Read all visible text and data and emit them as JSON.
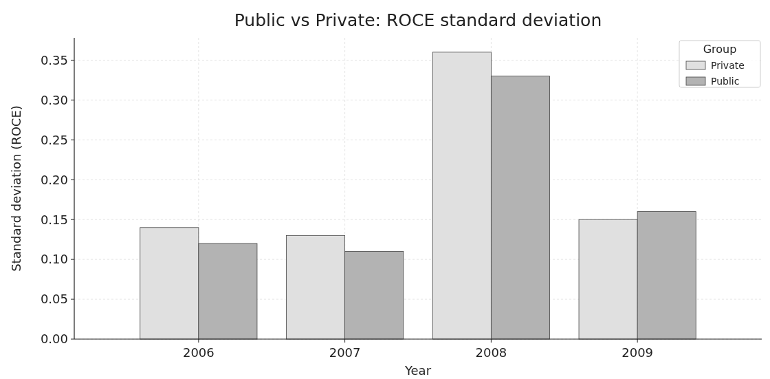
{
  "chart_data": {
    "type": "bar",
    "title": "Public vs Private: ROCE standard deviation",
    "xlabel": "Year",
    "ylabel": "Standard deviation (ROCE)",
    "legend_title": "Group",
    "categories": [
      "2006",
      "2007",
      "2008",
      "2009"
    ],
    "series": [
      {
        "name": "Private",
        "color": "#e0e0e0",
        "values": [
          0.14,
          0.13,
          0.36,
          0.15
        ]
      },
      {
        "name": "Public",
        "color": "#b3b3b3",
        "values": [
          0.12,
          0.11,
          0.33,
          0.16
        ]
      }
    ],
    "ylim": [
      0,
      0.378
    ],
    "yticks": [
      {
        "value": 0,
        "label": "0.00"
      },
      {
        "value": 0.05,
        "label": "0.05"
      },
      {
        "value": 0.1,
        "label": "0.10"
      },
      {
        "value": 0.15,
        "label": "0.15"
      },
      {
        "value": 0.2,
        "label": "0.20"
      },
      {
        "value": 0.25,
        "label": "0.25"
      },
      {
        "value": 0.3,
        "label": "0.30"
      },
      {
        "value": 0.35,
        "label": "0.35"
      }
    ],
    "grid": true,
    "legend": "top right"
  }
}
